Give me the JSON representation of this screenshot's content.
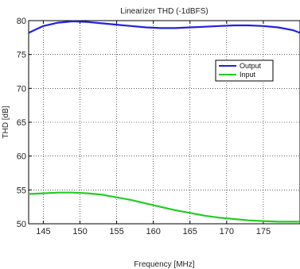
{
  "chart_data": {
    "type": "line",
    "title": "Linearizer THD (-1dBFS)",
    "xlabel": "Frequency [MHz]",
    "ylabel": "THD [dB]",
    "xlim": [
      143,
      180
    ],
    "ylim": [
      50,
      80
    ],
    "grid": true,
    "legend_position": "right",
    "x_ticks": [
      145,
      150,
      155,
      160,
      165,
      170,
      175
    ],
    "y_ticks": [
      50,
      55,
      60,
      65,
      70,
      75,
      80
    ],
    "series": [
      {
        "name": "Output",
        "color": "#2020e0",
        "x": [
          143,
          145,
          147,
          149,
          151,
          153,
          155,
          157,
          159,
          161,
          163,
          165,
          167,
          169,
          171,
          173,
          175,
          177,
          179,
          180
        ],
        "y": [
          78.2,
          79.2,
          79.7,
          79.9,
          79.8,
          79.6,
          79.4,
          79.2,
          79.0,
          78.9,
          78.9,
          79.0,
          79.1,
          79.2,
          79.3,
          79.3,
          79.2,
          79.0,
          78.6,
          78.2
        ]
      },
      {
        "name": "Input",
        "color": "#22cc22",
        "x": [
          143,
          145,
          147,
          149,
          151,
          153,
          155,
          157,
          159,
          161,
          163,
          165,
          167,
          169,
          171,
          173,
          175,
          177,
          179,
          180
        ],
        "y": [
          54.4,
          54.5,
          54.6,
          54.6,
          54.5,
          54.3,
          53.9,
          53.5,
          53.0,
          52.5,
          52.0,
          51.6,
          51.2,
          50.9,
          50.7,
          50.5,
          50.4,
          50.3,
          50.3,
          50.3
        ]
      }
    ]
  }
}
